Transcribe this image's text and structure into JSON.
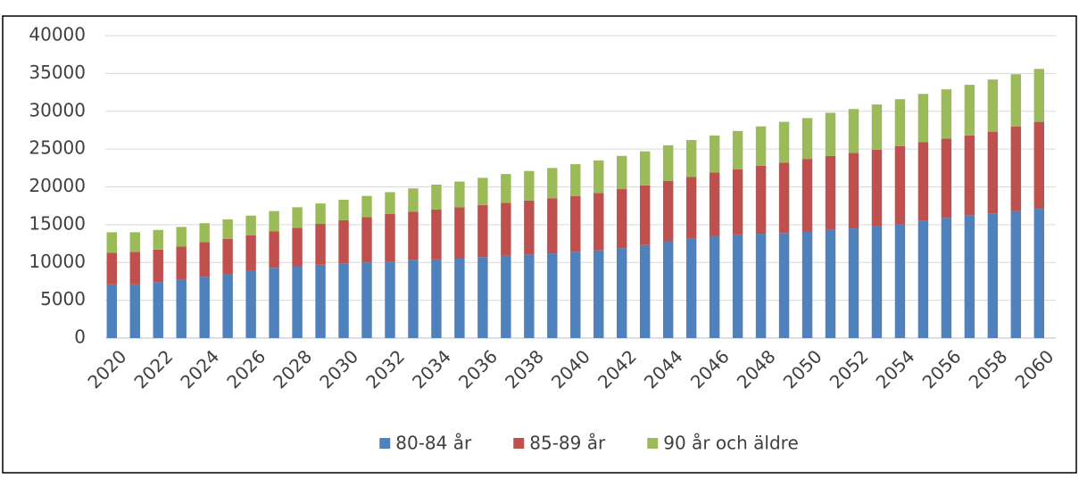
{
  "chart_data": {
    "type": "stacked_bar",
    "categories": [
      "2020",
      null,
      "2022",
      null,
      "2024",
      null,
      "2026",
      null,
      "2028",
      null,
      "2030",
      null,
      "2032",
      null,
      "2034",
      null,
      "2036",
      null,
      "2038",
      null,
      "2040",
      null,
      "2042",
      null,
      "2044",
      null,
      "2046",
      null,
      "2048",
      null,
      "2050",
      null,
      "2052",
      null,
      "2054",
      null,
      "2056",
      null,
      "2058",
      null,
      "2060"
    ],
    "series": [
      {
        "name": "80-84 år",
        "color": "#4f81bd",
        "values": [
          7100,
          7100,
          7400,
          7700,
          8100,
          8500,
          8900,
          9300,
          9500,
          9700,
          9900,
          10000,
          10100,
          10300,
          10400,
          10500,
          10700,
          10900,
          11000,
          11200,
          11400,
          11600,
          11900,
          12300,
          12800,
          13200,
          13500,
          13700,
          13800,
          13900,
          14100,
          14300,
          14500,
          14800,
          15100,
          15500,
          15900,
          16200,
          16500,
          16800,
          17100
        ]
      },
      {
        "name": "85-89 år",
        "color": "#c0504d",
        "values": [
          4200,
          4300,
          4300,
          4400,
          4600,
          4600,
          4700,
          4800,
          5100,
          5400,
          5700,
          6000,
          6300,
          6400,
          6600,
          6800,
          6900,
          7000,
          7200,
          7300,
          7400,
          7600,
          7800,
          7900,
          8000,
          8100,
          8400,
          8600,
          9000,
          9300,
          9600,
          9800,
          10000,
          10100,
          10300,
          10400,
          10500,
          10600,
          10800,
          11200,
          11500
        ]
      },
      {
        "name": "90 år och äldre",
        "color": "#9bbb59",
        "values": [
          2700,
          2600,
          2600,
          2600,
          2500,
          2600,
          2600,
          2700,
          2700,
          2700,
          2700,
          2800,
          2900,
          3100,
          3300,
          3400,
          3600,
          3800,
          3900,
          4000,
          4200,
          4300,
          4400,
          4500,
          4700,
          4900,
          4900,
          5100,
          5200,
          5400,
          5400,
          5700,
          5800,
          6000,
          6200,
          6400,
          6500,
          6700,
          6900,
          6900,
          7000
        ]
      }
    ],
    "ylim": [
      0,
      40000
    ],
    "yticks": [
      0,
      5000,
      10000,
      15000,
      20000,
      25000,
      30000,
      35000,
      40000
    ],
    "grid": true,
    "legend": "bottom"
  }
}
